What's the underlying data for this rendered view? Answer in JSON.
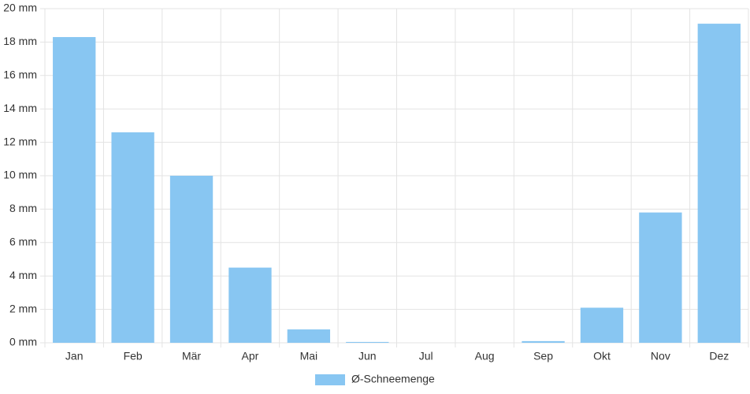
{
  "chart_data": {
    "type": "bar",
    "categories": [
      "Jan",
      "Feb",
      "Mär",
      "Apr",
      "Mai",
      "Jun",
      "Jul",
      "Aug",
      "Sep",
      "Okt",
      "Nov",
      "Dez"
    ],
    "series": [
      {
        "name": "Ø-Schneemenge",
        "color": "#88c6f2",
        "values": [
          18.3,
          12.6,
          10.0,
          4.5,
          0.8,
          0.05,
          0,
          0,
          0.1,
          2.1,
          7.8,
          19.1
        ]
      }
    ],
    "ylim": [
      0,
      20
    ],
    "yticks": [
      {
        "value": 0,
        "label": "0 mm"
      },
      {
        "value": 2,
        "label": "2 mm"
      },
      {
        "value": 4,
        "label": "4 mm"
      },
      {
        "value": 6,
        "label": "6 mm"
      },
      {
        "value": 8,
        "label": "8 mm"
      },
      {
        "value": 10,
        "label": "10 mm"
      },
      {
        "value": 12,
        "label": "12 mm"
      },
      {
        "value": 14,
        "label": "14 mm"
      },
      {
        "value": 16,
        "label": "16 mm"
      },
      {
        "value": 18,
        "label": "18 mm"
      },
      {
        "value": 20,
        "label": "20 mm"
      }
    ],
    "grid": true,
    "legend": "bottom"
  }
}
